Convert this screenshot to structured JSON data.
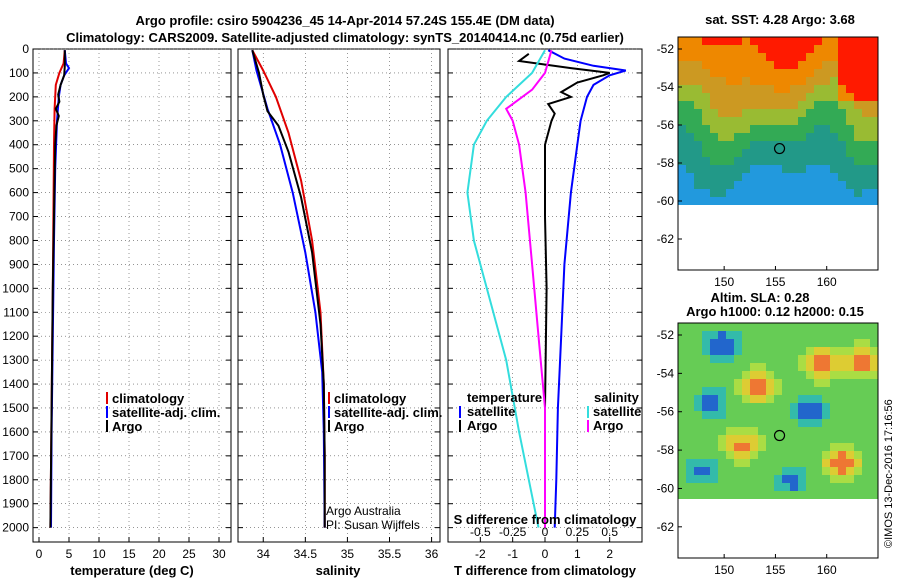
{
  "header": {
    "title_line1": "Argo profile: csiro 5904236_45 14-Apr-2014 57.24S 155.4E (DM data)",
    "title_line2": "Climatology: CARS2009. Satellite-adjusted climatology: synTS_20140414.nc (0.75d earlier)"
  },
  "credit": "©IMOS 13-Dec-2016 17:16:56",
  "colors": {
    "climatology": "#e00000",
    "satellite": "#0000ff",
    "argo": "#000000",
    "sat_salinity": "#33dddd",
    "argo_salinity": "#ff00ff"
  },
  "chart_data": [
    {
      "type": "line",
      "xlabel": "temperature (deg C)",
      "ylabel": "",
      "xlim": [
        -1,
        32
      ],
      "ylim": [
        2060,
        0
      ],
      "xticks": [
        0,
        5,
        10,
        15,
        20,
        25,
        30
      ],
      "yticks": [
        0,
        100,
        200,
        300,
        400,
        500,
        600,
        700,
        800,
        900,
        1000,
        1100,
        1200,
        1300,
        1400,
        1500,
        1600,
        1700,
        1800,
        1900,
        2000
      ],
      "grid": true,
      "legend": [
        "climatology",
        "satellite-adj. clim.",
        "Argo"
      ],
      "series": [
        {
          "name": "climatology",
          "points": [
            [
              4.3,
              5
            ],
            [
              4.1,
              60
            ],
            [
              3.4,
              100
            ],
            [
              2.8,
              150
            ],
            [
              2.6,
              250
            ],
            [
              2.5,
              400
            ],
            [
              2.4,
              700
            ],
            [
              2.3,
              1000
            ],
            [
              2.1,
              1500
            ],
            [
              1.9,
              2000
            ]
          ]
        },
        {
          "name": "satellite-adj. clim.",
          "points": [
            [
              4.3,
              5
            ],
            [
              4.5,
              60
            ],
            [
              5.0,
              80
            ],
            [
              4.2,
              110
            ],
            [
              3.6,
              150
            ],
            [
              3.3,
              200
            ],
            [
              3.0,
              300
            ],
            [
              2.7,
              500
            ],
            [
              2.5,
              800
            ],
            [
              2.3,
              1200
            ],
            [
              2.1,
              1600
            ],
            [
              2.0,
              2000
            ]
          ]
        },
        {
          "name": "Argo",
          "points": [
            [
              4.3,
              5
            ],
            [
              4.3,
              70
            ],
            [
              4.2,
              110
            ],
            [
              3.6,
              150
            ],
            [
              3.2,
              190
            ],
            [
              3.4,
              220
            ],
            [
              2.8,
              250
            ],
            [
              3.3,
              280
            ],
            [
              2.9,
              320
            ],
            [
              2.7,
              400
            ],
            [
              2.5,
              700
            ],
            [
              2.3,
              1000
            ],
            [
              2.1,
              1500
            ],
            [
              1.9,
              2000
            ]
          ]
        }
      ]
    },
    {
      "type": "line",
      "xlabel": "salinity",
      "xlim": [
        33.7,
        36.1
      ],
      "ylim": [
        2060,
        0
      ],
      "xticks": [
        34,
        34.5,
        35,
        35.5,
        36
      ],
      "grid": true,
      "legend": [
        "climatology",
        "satellite-adj. clim.",
        "Argo"
      ],
      "footer": [
        "Argo Australia",
        "PI: Susan Wijffels"
      ],
      "series": [
        {
          "name": "climatology",
          "points": [
            [
              33.87,
              5
            ],
            [
              34.0,
              90
            ],
            [
              34.15,
              200
            ],
            [
              34.3,
              350
            ],
            [
              34.45,
              550
            ],
            [
              34.58,
              800
            ],
            [
              34.68,
              1100
            ],
            [
              34.72,
              1400
            ],
            [
              34.73,
              1700
            ],
            [
              34.73,
              2000
            ]
          ]
        },
        {
          "name": "satellite-adj. clim.",
          "points": [
            [
              33.87,
              5
            ],
            [
              33.92,
              90
            ],
            [
              34.05,
              250
            ],
            [
              34.2,
              400
            ],
            [
              34.35,
              600
            ],
            [
              34.5,
              850
            ],
            [
              34.62,
              1100
            ],
            [
              34.7,
              1350
            ],
            [
              34.72,
              1600
            ],
            [
              34.73,
              2000
            ]
          ]
        },
        {
          "name": "Argo",
          "points": [
            [
              33.87,
              5
            ],
            [
              33.95,
              100
            ],
            [
              34.0,
              190
            ],
            [
              34.05,
              260
            ],
            [
              34.18,
              320
            ],
            [
              34.3,
              430
            ],
            [
              34.45,
              620
            ],
            [
              34.58,
              850
            ],
            [
              34.68,
              1150
            ],
            [
              34.72,
              1400
            ],
            [
              34.73,
              1700
            ],
            [
              34.73,
              2000
            ]
          ]
        }
      ]
    },
    {
      "type": "line",
      "xlabel": "T difference from climatology",
      "xlabel2": "S difference from climatology",
      "xlim": [
        -3,
        3
      ],
      "ylim": [
        2060,
        0
      ],
      "xticks": [
        -2,
        -1,
        0,
        1,
        2
      ],
      "xticks_top": [
        "-0.5",
        "-0.25",
        "0",
        "0.25",
        "0.5"
      ],
      "grid": true,
      "legend_left_title": "temperature",
      "legend_right_title": "salinity",
      "legend_left": [
        "satellite",
        "Argo"
      ],
      "legend_right": [
        "satellite",
        "Argo"
      ],
      "series": [
        {
          "name": "satellite",
          "kind": "temperature",
          "points": [
            [
              0.1,
              5
            ],
            [
              0.6,
              40
            ],
            [
              1.5,
              70
            ],
            [
              2.5,
              90
            ],
            [
              2.0,
              110
            ],
            [
              1.5,
              150
            ],
            [
              1.3,
              200
            ],
            [
              1.1,
              300
            ],
            [
              1.0,
              400
            ],
            [
              0.8,
              600
            ],
            [
              0.6,
              900
            ],
            [
              0.5,
              1200
            ],
            [
              0.4,
              1500
            ],
            [
              0.35,
              1800
            ],
            [
              0.3,
              2000
            ]
          ]
        },
        {
          "name": "Argo",
          "kind": "temperature",
          "points": [
            [
              -0.5,
              20
            ],
            [
              -0.8,
              50
            ],
            [
              0.8,
              80
            ],
            [
              2.0,
              100
            ],
            [
              1.8,
              110
            ],
            [
              1.0,
              140
            ],
            [
              0.5,
              180
            ],
            [
              0.8,
              200
            ],
            [
              0.1,
              230
            ],
            [
              0.3,
              270
            ],
            [
              0.2,
              300
            ],
            [
              0.0,
              400
            ],
            [
              0.0,
              700
            ],
            [
              0.05,
              1000
            ],
            [
              0.0,
              1500
            ],
            [
              0.0,
              2000
            ]
          ]
        },
        {
          "name": "satellite",
          "kind": "salinity",
          "points": [
            [
              0.0,
              5
            ],
            [
              -0.1,
              100
            ],
            [
              -0.3,
              200
            ],
            [
              -0.45,
              300
            ],
            [
              -0.55,
              400
            ],
            [
              -0.6,
              600
            ],
            [
              -0.55,
              800
            ],
            [
              -0.45,
              1000
            ],
            [
              -0.3,
              1300
            ],
            [
              -0.2,
              1600
            ],
            [
              -0.05,
              2000
            ]
          ]
        },
        {
          "name": "Argo",
          "kind": "salinity",
          "points": [
            [
              0.05,
              5
            ],
            [
              0.0,
              100
            ],
            [
              -0.1,
              170
            ],
            [
              -0.3,
              250
            ],
            [
              -0.25,
              300
            ],
            [
              -0.2,
              400
            ],
            [
              -0.15,
              600
            ],
            [
              -0.1,
              900
            ],
            [
              -0.05,
              1200
            ],
            [
              0.0,
              1500
            ],
            [
              0.0,
              2000
            ]
          ]
        }
      ]
    },
    {
      "type": "heatmap",
      "title": "sat. SST: 4.28 Argo: 3.68",
      "xticks": [
        150,
        155,
        160
      ],
      "yticks": [
        -52,
        -54,
        -56,
        -58,
        -60,
        -62
      ],
      "marker": [
        155.4,
        -57.24
      ]
    },
    {
      "type": "heatmap",
      "title": "Altim. SLA: 0.28",
      "subtitle": "Argo h1000: 0.12 h2000: 0.15",
      "xticks": [
        150,
        155,
        160
      ],
      "yticks": [
        -52,
        -54,
        -56,
        -58,
        -60,
        -62
      ],
      "marker": [
        155.4,
        -57.24
      ]
    }
  ]
}
